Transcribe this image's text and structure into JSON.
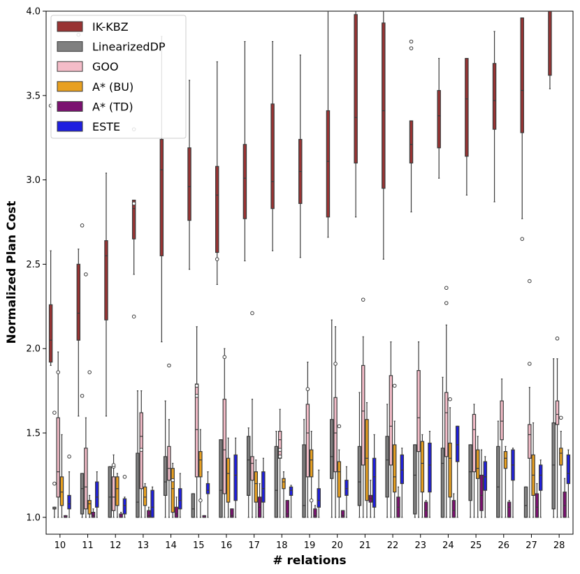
{
  "chart_data": {
    "type": "boxplot",
    "title": "",
    "xlabel": "# relations",
    "ylabel": "Normalized Plan Cost",
    "ylim": [
      0.9,
      4.0
    ],
    "yticks": [
      "1.0",
      "1.5",
      "2.0",
      "2.5",
      "3.0",
      "3.5",
      "4.0"
    ],
    "categories": [
      "10",
      "11",
      "12",
      "13",
      "14",
      "15",
      "16",
      "17",
      "18",
      "19",
      "20",
      "21",
      "22",
      "23",
      "24",
      "25",
      "26",
      "27",
      "28"
    ],
    "legend_position": "top-left",
    "series": [
      {
        "name": "IK-KBZ",
        "color": "#993333",
        "boxes": [
          [
            1.92,
            2.26,
            2.58,
            1.9,
            2.05
          ],
          [
            2.05,
            2.5,
            2.59,
            1.6,
            2.21
          ],
          [
            2.17,
            2.64,
            3.04,
            1.6,
            2.55
          ],
          [
            2.65,
            2.88,
            2.88,
            2.44,
            2.83
          ],
          [
            2.55,
            3.24,
            3.85,
            2.04,
            3.06
          ],
          [
            2.76,
            3.19,
            3.59,
            2.47,
            2.96
          ],
          [
            2.57,
            3.08,
            3.7,
            2.38,
            2.91
          ],
          [
            2.77,
            3.21,
            3.82,
            2.52,
            3.01
          ],
          [
            2.83,
            3.45,
            3.82,
            2.58,
            2.99
          ],
          [
            2.86,
            3.24,
            3.74,
            2.54,
            3.05
          ],
          [
            2.78,
            3.41,
            4.0,
            2.66,
            3.11
          ],
          [
            3.1,
            3.98,
            4.0,
            2.78,
            3.37
          ],
          [
            2.95,
            3.93,
            4.0,
            2.53,
            3.41
          ],
          [
            3.1,
            3.35,
            3.35,
            2.81,
            3.21
          ],
          [
            3.19,
            3.53,
            3.72,
            3.01,
            3.38
          ],
          [
            3.14,
            3.72,
            3.72,
            2.91,
            3.48
          ],
          [
            3.3,
            3.69,
            3.88,
            2.87,
            3.47
          ],
          [
            3.28,
            3.96,
            3.96,
            2.77,
            3.53
          ],
          [
            3.62,
            4.0,
            4.0,
            3.54,
            4.0
          ]
        ]
      },
      {
        "name": "LinearizedDP",
        "color": "#808080",
        "boxes": [
          [
            1.05,
            1.06,
            1.06,
            1.0,
            1.05
          ],
          [
            1.02,
            1.26,
            1.26,
            1.0,
            1.17
          ],
          [
            1.0,
            1.3,
            1.3,
            1.0,
            1.12
          ],
          [
            1.0,
            1.38,
            1.75,
            1.0,
            1.09
          ],
          [
            1.13,
            1.36,
            1.69,
            1.0,
            1.21
          ],
          [
            1.0,
            1.14,
            1.14,
            1.0,
            1.05
          ],
          [
            1.0,
            1.46,
            1.46,
            1.0,
            1.16
          ],
          [
            1.13,
            1.48,
            1.53,
            1.0,
            1.34
          ],
          [
            1.0,
            1.42,
            1.51,
            1.0,
            1.16
          ],
          [
            1.0,
            1.43,
            1.58,
            1.0,
            1.07
          ],
          [
            1.23,
            1.58,
            2.17,
            1.0,
            1.36
          ],
          [
            1.07,
            1.42,
            1.74,
            1.0,
            1.21
          ],
          [
            1.12,
            1.48,
            1.67,
            1.0,
            1.34
          ],
          [
            1.02,
            1.43,
            1.43,
            1.0,
            1.25
          ],
          [
            1.0,
            1.41,
            1.83,
            1.0,
            1.32
          ],
          [
            1.1,
            1.43,
            1.43,
            1.0,
            1.27
          ],
          [
            1.0,
            1.42,
            1.57,
            1.0,
            1.18
          ],
          [
            1.0,
            1.18,
            1.18,
            1.0,
            1.07
          ],
          [
            1.05,
            1.56,
            1.94,
            1.0,
            1.31
          ]
        ]
      },
      {
        "name": "GOO",
        "color": "#f4bcc8",
        "boxes": [
          [
            1.12,
            1.59,
            1.98,
            1.0,
            1.27
          ],
          [
            1.05,
            1.41,
            1.59,
            1.0,
            1.18
          ],
          [
            1.04,
            1.24,
            1.37,
            1.0,
            1.12
          ],
          [
            1.17,
            1.62,
            1.75,
            1.0,
            1.48
          ],
          [
            1.22,
            1.42,
            1.58,
            1.0,
            1.29
          ],
          [
            1.24,
            1.79,
            2.13,
            1.0,
            1.52
          ],
          [
            1.14,
            1.7,
            2.0,
            1.0,
            1.4
          ],
          [
            1.22,
            1.36,
            1.7,
            1.0,
            1.32
          ],
          [
            1.35,
            1.51,
            1.64,
            1.0,
            1.46
          ],
          [
            1.24,
            1.67,
            1.92,
            1.0,
            1.5
          ],
          [
            1.27,
            1.71,
            2.13,
            1.0,
            1.5
          ],
          [
            1.31,
            1.9,
            2.07,
            1.0,
            1.63
          ],
          [
            1.31,
            1.84,
            2.04,
            1.0,
            1.54
          ],
          [
            1.39,
            1.87,
            2.04,
            1.0,
            1.59
          ],
          [
            1.36,
            1.74,
            2.14,
            1.0,
            1.62
          ],
          [
            1.27,
            1.61,
            1.67,
            1.0,
            1.52
          ],
          [
            1.46,
            1.69,
            1.82,
            1.0,
            1.57
          ],
          [
            1.35,
            1.55,
            1.77,
            1.0,
            1.49
          ],
          [
            1.55,
            1.69,
            1.94,
            1.0,
            1.61
          ]
        ]
      },
      {
        "name": "A* (BU)",
        "color": "#e8a020",
        "boxes": [
          [
            1.07,
            1.24,
            1.49,
            1.0,
            1.15
          ],
          [
            1.02,
            1.1,
            1.13,
            1.0,
            1.08
          ],
          [
            1.07,
            1.24,
            1.26,
            1.0,
            1.17
          ],
          [
            1.07,
            1.18,
            1.2,
            1.0,
            1.12
          ],
          [
            1.03,
            1.29,
            1.32,
            1.0,
            1.17
          ],
          [
            1.24,
            1.39,
            1.52,
            1.0,
            1.34
          ],
          [
            1.09,
            1.35,
            1.47,
            1.0,
            1.26
          ],
          [
            1.09,
            1.27,
            1.34,
            1.0,
            1.2
          ],
          [
            1.17,
            1.23,
            1.27,
            1.0,
            1.21
          ],
          [
            1.24,
            1.4,
            1.51,
            1.0,
            1.34
          ],
          [
            1.12,
            1.33,
            1.4,
            1.0,
            1.27
          ],
          [
            1.1,
            1.58,
            1.68,
            1.0,
            1.35
          ],
          [
            1.15,
            1.43,
            1.57,
            1.0,
            1.24
          ],
          [
            1.15,
            1.45,
            1.49,
            1.0,
            1.32
          ],
          [
            1.12,
            1.44,
            1.65,
            1.0,
            1.35
          ],
          [
            1.23,
            1.4,
            1.48,
            1.0,
            1.29
          ],
          [
            1.29,
            1.39,
            1.42,
            1.0,
            1.35
          ],
          [
            1.13,
            1.37,
            1.56,
            1.0,
            1.25
          ],
          [
            1.31,
            1.41,
            1.51,
            1.0,
            1.38
          ]
        ]
      },
      {
        "name": "A* (TD)",
        "color": "#7b1070",
        "boxes": [
          [
            1.0,
            1.01,
            1.01,
            1.0,
            1.0
          ],
          [
            1.0,
            1.03,
            1.05,
            1.0,
            1.01
          ],
          [
            1.0,
            1.02,
            1.03,
            1.0,
            1.0
          ],
          [
            1.0,
            1.04,
            1.06,
            1.0,
            1.01
          ],
          [
            1.0,
            1.06,
            1.12,
            1.0,
            1.02
          ],
          [
            1.0,
            1.01,
            1.01,
            1.0,
            1.0
          ],
          [
            1.0,
            1.05,
            1.05,
            1.0,
            1.01
          ],
          [
            1.0,
            1.12,
            1.2,
            1.0,
            1.06
          ],
          [
            1.0,
            1.1,
            1.1,
            1.0,
            1.02
          ],
          [
            1.0,
            1.05,
            1.07,
            1.0,
            1.01
          ],
          [
            1.0,
            1.04,
            1.04,
            1.0,
            1.01
          ],
          [
            1.09,
            1.13,
            1.22,
            1.0,
            1.11
          ],
          [
            1.0,
            1.12,
            1.18,
            1.0,
            1.06
          ],
          [
            1.0,
            1.09,
            1.1,
            1.0,
            1.04
          ],
          [
            1.0,
            1.1,
            1.14,
            1.0,
            1.04
          ],
          [
            1.04,
            1.25,
            1.4,
            1.0,
            1.13
          ],
          [
            1.0,
            1.09,
            1.1,
            1.0,
            1.06
          ],
          [
            1.0,
            1.14,
            1.2,
            1.0,
            1.06
          ],
          [
            1.0,
            1.15,
            1.23,
            1.0,
            1.07
          ]
        ]
      },
      {
        "name": "ESTE",
        "color": "#1f1fe0",
        "boxes": [
          [
            1.05,
            1.13,
            1.27,
            1.0,
            1.08
          ],
          [
            1.06,
            1.21,
            1.27,
            1.0,
            1.12
          ],
          [
            1.02,
            1.11,
            1.12,
            1.0,
            1.07
          ],
          [
            1.0,
            1.16,
            1.18,
            1.0,
            1.06
          ],
          [
            1.05,
            1.17,
            1.26,
            1.0,
            1.1
          ],
          [
            1.14,
            1.2,
            1.27,
            1.0,
            1.16
          ],
          [
            1.1,
            1.37,
            1.47,
            1.0,
            1.25
          ],
          [
            1.09,
            1.27,
            1.35,
            1.0,
            1.17
          ],
          [
            1.13,
            1.18,
            1.19,
            1.0,
            1.16
          ],
          [
            1.06,
            1.17,
            1.28,
            1.0,
            1.1
          ],
          [
            1.13,
            1.22,
            1.3,
            1.0,
            1.17
          ],
          [
            1.06,
            1.35,
            1.49,
            1.0,
            1.24
          ],
          [
            1.2,
            1.37,
            1.41,
            1.0,
            1.28
          ],
          [
            1.15,
            1.44,
            1.51,
            1.0,
            1.31
          ],
          [
            1.33,
            1.54,
            1.54,
            1.0,
            1.43
          ],
          [
            1.16,
            1.33,
            1.36,
            1.0,
            1.24
          ],
          [
            1.22,
            1.4,
            1.41,
            1.0,
            1.31
          ],
          [
            1.16,
            1.31,
            1.34,
            1.0,
            1.25
          ],
          [
            1.2,
            1.37,
            1.4,
            1.0,
            1.26
          ]
        ]
      }
    ],
    "outliers": [
      {
        "series": "IK-KBZ",
        "category": "10",
        "values": [
          3.44
        ]
      },
      {
        "series": "IK-KBZ",
        "category": "11",
        "values": [
          3.86
        ]
      },
      {
        "series": "IK-KBZ",
        "category": "13",
        "values": [
          2.19,
          3.3,
          2.86
        ]
      },
      {
        "series": "IK-KBZ",
        "category": "16",
        "values": [
          2.53
        ]
      },
      {
        "series": "IK-KBZ",
        "category": "23",
        "values": [
          3.78,
          3.82
        ]
      },
      {
        "series": "IK-KBZ",
        "category": "27",
        "values": [
          2.65
        ]
      },
      {
        "series": "LinearizedDP",
        "category": "10",
        "values": [
          1.2,
          1.62
        ]
      },
      {
        "series": "LinearizedDP",
        "category": "11",
        "values": [
          1.72,
          2.73
        ]
      },
      {
        "series": "GOO",
        "category": "10",
        "values": [
          1.86
        ]
      },
      {
        "series": "GOO",
        "category": "11",
        "values": [
          2.44
        ]
      },
      {
        "series": "GOO",
        "category": "12",
        "values": [
          1.3,
          1.31
        ]
      },
      {
        "series": "GOO",
        "category": "13",
        "values": [
          1.4
        ]
      },
      {
        "series": "GOO",
        "category": "14",
        "values": [
          1.9
        ]
      },
      {
        "series": "GOO",
        "category": "15",
        "values": [
          1.78,
          1.72
        ]
      },
      {
        "series": "GOO",
        "category": "16",
        "values": [
          1.95
        ]
      },
      {
        "series": "GOO",
        "category": "17",
        "values": [
          2.21
        ]
      },
      {
        "series": "GOO",
        "category": "18",
        "values": [
          1.36,
          1.4
        ]
      },
      {
        "series": "GOO",
        "category": "19",
        "values": [
          1.76
        ]
      },
      {
        "series": "GOO",
        "category": "20",
        "values": [
          1.91
        ]
      },
      {
        "series": "GOO",
        "category": "21",
        "values": [
          2.29
        ]
      },
      {
        "series": "GOO",
        "category": "24",
        "values": [
          2.36,
          2.27
        ]
      },
      {
        "series": "GOO",
        "category": "27",
        "values": [
          2.4,
          1.91
        ]
      },
      {
        "series": "GOO",
        "category": "28",
        "values": [
          2.06
        ]
      },
      {
        "series": "A* (BU)",
        "category": "11",
        "values": [
          1.86
        ]
      },
      {
        "series": "A* (BU)",
        "category": "14",
        "values": [
          1.22
        ]
      },
      {
        "series": "A* (BU)",
        "category": "15",
        "values": [
          1.1
        ]
      },
      {
        "series": "A* (BU)",
        "category": "19",
        "values": [
          1.1
        ]
      },
      {
        "series": "A* (BU)",
        "category": "20",
        "values": [
          1.54
        ]
      },
      {
        "series": "A* (BU)",
        "category": "22",
        "values": [
          1.78
        ]
      },
      {
        "series": "A* (BU)",
        "category": "24",
        "values": [
          1.7
        ]
      },
      {
        "series": "A* (BU)",
        "category": "28",
        "values": [
          1.59
        ]
      },
      {
        "series": "ESTE",
        "category": "10",
        "values": [
          1.36
        ]
      },
      {
        "series": "ESTE",
        "category": "12",
        "values": [
          1.24
        ]
      }
    ]
  }
}
